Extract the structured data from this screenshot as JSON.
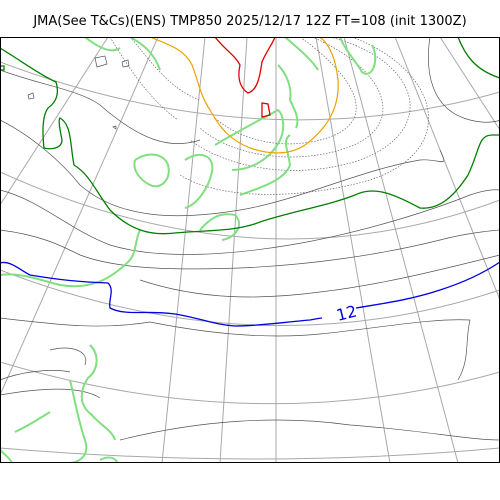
{
  "title": "JMA(See T&Cs)(ENS) TMP850 2025/12/17 12Z FT=108 (init 1300Z)",
  "contour_labels": {
    "isotherm_12": "12"
  },
  "colors": {
    "coastline": "#80e080",
    "graticule": "#a8a8a8",
    "isotherm_thin": "#555555",
    "isotherm_fine": "#666666",
    "isotherm_green": "#008000",
    "isotherm_blue": "#0000e0",
    "isotherm_orange": "#f0a000",
    "isotherm_red": "#e00000",
    "frame": "#000000"
  }
}
